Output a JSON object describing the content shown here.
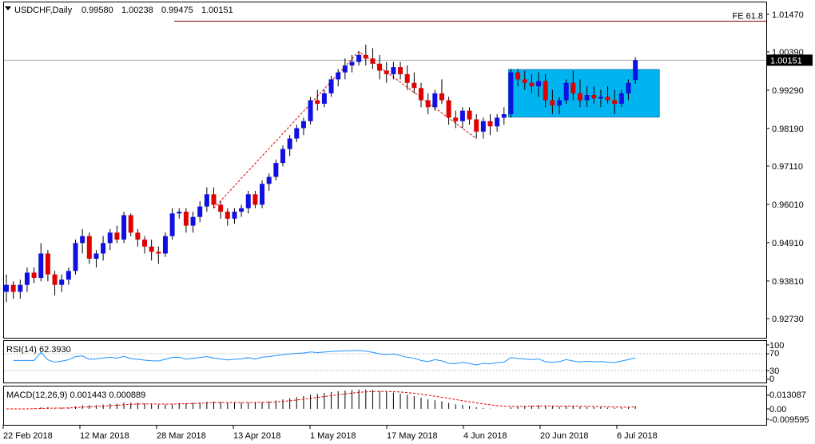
{
  "header": {
    "symbol_label": "USDCHF,Daily",
    "ohlc": [
      "0.99580",
      "1.00238",
      "0.99475",
      "1.00151"
    ]
  },
  "price_panel": {
    "current_price": "1.00151",
    "fe_label": "FE 61.8"
  },
  "rsi_panel": {
    "label": "RSI(14) 62.3930",
    "levels": [
      "100",
      "70",
      "30",
      "0"
    ]
  },
  "macd_panel": {
    "label": "MACD(12,26,9) 0.001443 0.000889",
    "levels": [
      "0.013087",
      "0.00",
      "-0.009595"
    ]
  },
  "colors": {
    "bull": "#1010e0",
    "bear": "#e00000",
    "rectangle_fill": "#00b4f0",
    "fe_line": "#8b0000",
    "rsi_line": "#1e90ff",
    "macd_signal": "#e00000"
  },
  "chart_data": [
    {
      "type": "candlestick",
      "instrument": "USDCHF",
      "timeframe": "Daily",
      "x_tick_labels": [
        "22 Feb 2018",
        "12 Mar 2018",
        "28 Mar 2018",
        "13 Apr 2018",
        "1 May 2018",
        "17 May 2018",
        "4 Jun 2018",
        "20 Jun 2018",
        "6 Jul 2018"
      ],
      "y_tick_labels": [
        "1.01470",
        "1.00390",
        "0.99290",
        "0.98190",
        "0.97110",
        "0.96010",
        "0.94910",
        "0.93810",
        "0.92730"
      ],
      "ylim": [
        0.9218,
        1.0181
      ],
      "grid": false,
      "last_close": 1.00151,
      "fe_61_8_level": 1.0127,
      "consolidation_box": {
        "from": "8 Jun 2018",
        "to": "10 Jul 2018",
        "top": 0.9988,
        "bottom": 0.9852
      },
      "ohlc": [
        [
          0.935,
          0.94,
          0.932,
          0.937
        ],
        [
          0.937,
          0.938,
          0.933,
          0.935
        ],
        [
          0.935,
          0.9385,
          0.933,
          0.937
        ],
        [
          0.937,
          0.942,
          0.935,
          0.9405
        ],
        [
          0.9405,
          0.942,
          0.9375,
          0.939
        ],
        [
          0.939,
          0.949,
          0.938,
          0.946
        ],
        [
          0.946,
          0.947,
          0.938,
          0.94
        ],
        [
          0.94,
          0.941,
          0.934,
          0.937
        ],
        [
          0.937,
          0.94,
          0.935,
          0.9385
        ],
        [
          0.9385,
          0.942,
          0.937,
          0.941
        ],
        [
          0.941,
          0.95,
          0.94,
          0.949
        ],
        [
          0.949,
          0.953,
          0.946,
          0.951
        ],
        [
          0.951,
          0.952,
          0.943,
          0.9445
        ],
        [
          0.9445,
          0.947,
          0.942,
          0.946
        ],
        [
          0.946,
          0.951,
          0.944,
          0.949
        ],
        [
          0.949,
          0.953,
          0.947,
          0.952
        ],
        [
          0.952,
          0.954,
          0.949,
          0.95
        ],
        [
          0.95,
          0.958,
          0.949,
          0.957
        ],
        [
          0.957,
          0.9575,
          0.951,
          0.952
        ],
        [
          0.952,
          0.953,
          0.948,
          0.95
        ],
        [
          0.95,
          0.951,
          0.946,
          0.948
        ],
        [
          0.948,
          0.95,
          0.944,
          0.9465
        ],
        [
          0.9465,
          0.948,
          0.943,
          0.946
        ],
        [
          0.946,
          0.952,
          0.945,
          0.951
        ],
        [
          0.951,
          0.959,
          0.95,
          0.9575
        ],
        [
          0.9575,
          0.959,
          0.956,
          0.958
        ],
        [
          0.958,
          0.959,
          0.952,
          0.954
        ],
        [
          0.954,
          0.958,
          0.952,
          0.9565
        ],
        [
          0.9565,
          0.961,
          0.955,
          0.9595
        ],
        [
          0.9595,
          0.965,
          0.958,
          0.963
        ],
        [
          0.963,
          0.965,
          0.959,
          0.96
        ],
        [
          0.96,
          0.961,
          0.956,
          0.958
        ],
        [
          0.958,
          0.959,
          0.954,
          0.956
        ],
        [
          0.956,
          0.959,
          0.9545,
          0.958
        ],
        [
          0.958,
          0.96,
          0.9565,
          0.959
        ],
        [
          0.959,
          0.964,
          0.9575,
          0.963
        ],
        [
          0.963,
          0.964,
          0.959,
          0.96
        ],
        [
          0.96,
          0.967,
          0.959,
          0.966
        ],
        [
          0.966,
          0.969,
          0.964,
          0.968
        ],
        [
          0.968,
          0.973,
          0.967,
          0.972
        ],
        [
          0.972,
          0.977,
          0.971,
          0.976
        ],
        [
          0.976,
          0.98,
          0.974,
          0.979
        ],
        [
          0.979,
          0.983,
          0.978,
          0.982
        ],
        [
          0.982,
          0.985,
          0.98,
          0.984
        ],
        [
          0.984,
          0.991,
          0.983,
          0.99
        ],
        [
          0.99,
          0.993,
          0.987,
          0.989
        ],
        [
          0.989,
          0.993,
          0.988,
          0.992
        ],
        [
          0.992,
          0.997,
          0.991,
          0.996
        ],
        [
          0.996,
          0.999,
          0.994,
          0.998
        ],
        [
          0.998,
          1.002,
          0.996,
          1.0
        ],
        [
          1.0,
          1.003,
          0.998,
          1.001
        ],
        [
          1.001,
          1.004,
          1.0,
          1.003
        ],
        [
          1.003,
          1.006,
          1.0,
          1.002
        ],
        [
          1.002,
          1.005,
          0.999,
          1.0005
        ],
        [
          1.0005,
          1.003,
          0.996,
          0.9985
        ],
        [
          0.9985,
          1.001,
          0.995,
          0.9975
        ],
        [
          0.9975,
          1.001,
          0.996,
          0.9995
        ],
        [
          0.9995,
          1.001,
          0.996,
          0.9975
        ],
        [
          0.9975,
          1.0,
          0.993,
          0.995
        ],
        [
          0.995,
          0.998,
          0.992,
          0.9935
        ],
        [
          0.9935,
          0.995,
          0.988,
          0.99
        ],
        [
          0.99,
          0.992,
          0.986,
          0.988
        ],
        [
          0.988,
          0.993,
          0.987,
          0.992
        ],
        [
          0.992,
          0.996,
          0.989,
          0.99
        ],
        [
          0.99,
          0.991,
          0.983,
          0.985
        ],
        [
          0.985,
          0.987,
          0.982,
          0.984
        ],
        [
          0.984,
          0.988,
          0.982,
          0.987
        ],
        [
          0.987,
          0.988,
          0.983,
          0.9845
        ],
        [
          0.9845,
          0.986,
          0.979,
          0.981
        ],
        [
          0.981,
          0.985,
          0.979,
          0.984
        ],
        [
          0.984,
          0.986,
          0.98,
          0.9825
        ],
        [
          0.9825,
          0.986,
          0.981,
          0.985
        ],
        [
          0.985,
          0.988,
          0.983,
          0.986
        ],
        [
          0.986,
          0.999,
          0.985,
          0.998
        ],
        [
          0.998,
          0.999,
          0.994,
          0.996
        ],
        [
          0.996,
          0.9985,
          0.993,
          0.995
        ],
        [
          0.995,
          0.9975,
          0.992,
          0.994
        ],
        [
          0.994,
          0.998,
          0.991,
          0.9955
        ],
        [
          0.9955,
          0.9975,
          0.988,
          0.99
        ],
        [
          0.99,
          0.993,
          0.986,
          0.9885
        ],
        [
          0.9885,
          0.991,
          0.986,
          0.99
        ],
        [
          0.99,
          0.996,
          0.989,
          0.995
        ],
        [
          0.995,
          0.9985,
          0.99,
          0.992
        ],
        [
          0.992,
          0.996,
          0.988,
          0.99
        ],
        [
          0.99,
          0.994,
          0.988,
          0.9915
        ],
        [
          0.9915,
          0.994,
          0.989,
          0.9905
        ],
        [
          0.9905,
          0.993,
          0.988,
          0.991
        ],
        [
          0.991,
          0.994,
          0.989,
          0.99
        ],
        [
          0.99,
          0.993,
          0.986,
          0.989
        ],
        [
          0.989,
          0.993,
          0.988,
          0.992
        ],
        [
          0.992,
          0.996,
          0.99,
          0.995
        ],
        [
          0.9958,
          1.0024,
          0.9947,
          1.0015
        ]
      ]
    },
    {
      "type": "line",
      "name": "RSI(14)",
      "last_value": 62.393,
      "ylim": [
        0,
        100
      ],
      "levels": [
        70,
        30
      ]
    },
    {
      "type": "bar",
      "name": "MACD(12,26,9)",
      "macd_last": 0.001443,
      "signal_last": 0.000889,
      "ylim": [
        -0.009595,
        0.013087
      ]
    }
  ]
}
